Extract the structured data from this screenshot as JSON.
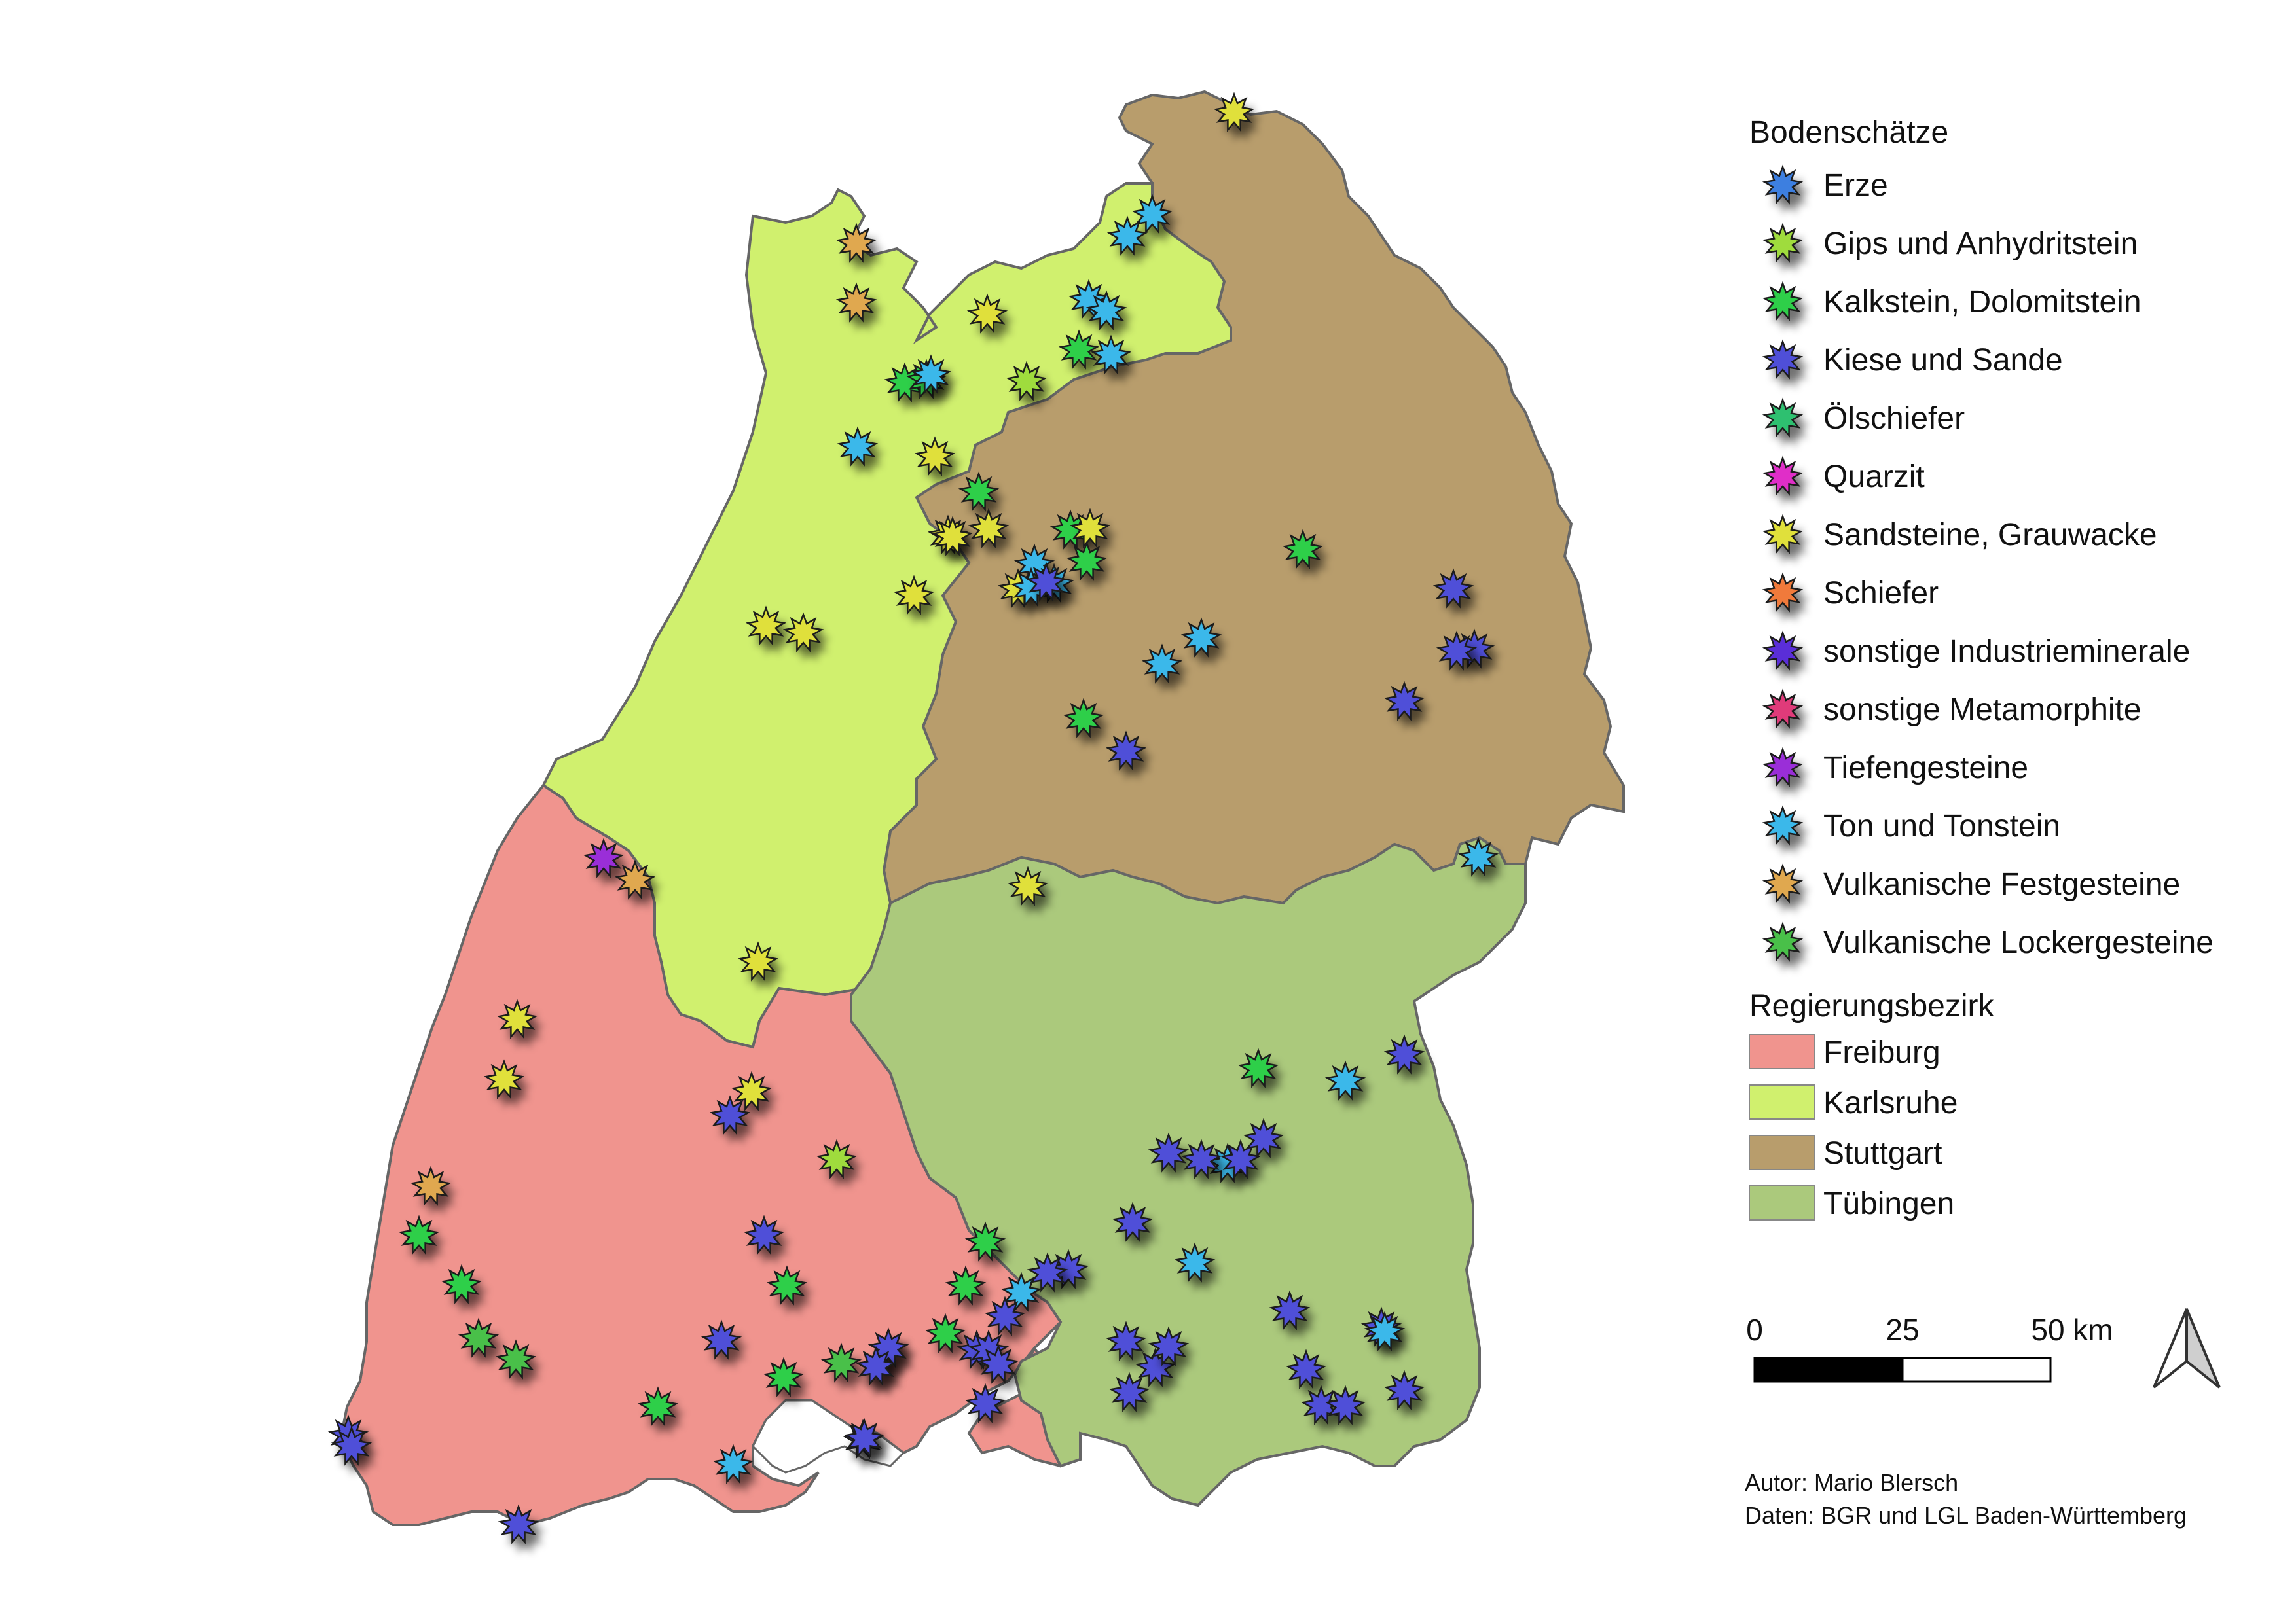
{
  "legend": {
    "minerals_title": "Bodenschätze",
    "minerals": [
      {
        "label": "Erze",
        "color": "#3d7fe0"
      },
      {
        "label": "Gips und Anhydritstein",
        "color": "#9fdc3c"
      },
      {
        "label": "Kalkstein, Dolomitstein",
        "color": "#2fcf4a"
      },
      {
        "label": "Kiese und Sande",
        "color": "#4f4fd8"
      },
      {
        "label": "Ölschiefer",
        "color": "#2fc070"
      },
      {
        "label": "Quarzit",
        "color": "#e02fc8"
      },
      {
        "label": "Sandsteine, Grauwacke",
        "color": "#e0e03a"
      },
      {
        "label": "Schiefer",
        "color": "#f07a3a"
      },
      {
        "label": "sonstige Industrieminerale",
        "color": "#5a2fd8"
      },
      {
        "label": "sonstige Metamorphite",
        "color": "#e03a7a"
      },
      {
        "label": "Tiefengesteine",
        "color": "#9a2fd8"
      },
      {
        "label": "Ton und Tonstein",
        "color": "#3ab8ea"
      },
      {
        "label": "Vulkanische Festgesteine",
        "color": "#e0a850"
      },
      {
        "label": "Vulkanische Lockergesteine",
        "color": "#4ac04a"
      }
    ],
    "regions_title": "Regierungsbezirk",
    "regions": [
      {
        "label": "Freiburg",
        "color": "#f0948e"
      },
      {
        "label": "Karlsruhe",
        "color": "#d0f06e"
      },
      {
        "label": "Stuttgart",
        "color": "#b89d6c"
      },
      {
        "label": "Tübingen",
        "color": "#abc97c"
      }
    ]
  },
  "scalebar": {
    "ticks": [
      "0",
      "25",
      "50 km"
    ]
  },
  "north_arrow": {
    "icon": "north-arrow-icon"
  },
  "credits": {
    "author": "Autor: Mario Blersch",
    "data": "Daten: BGR und LGL Baden-Württemberg"
  },
  "deposits": [
    {
      "t": "Vulkanische Festgesteine"
    },
    {
      "t": "Vulkanische Festgesteine"
    },
    {
      "t": "Sandsteine, Grauwacke"
    },
    {
      "t": "Ton und Tonstein"
    },
    {
      "t": "Ton und Tonstein"
    },
    {
      "t": "Ton und Tonstein"
    },
    {
      "t": "Ton und Tonstein"
    },
    {
      "t": "Sandsteine, Grauwacke"
    },
    {
      "t": "Kalkstein, Dolomitstein"
    },
    {
      "t": "Ton und Tonstein"
    },
    {
      "t": "Kalkstein, Dolomitstein"
    },
    {
      "t": "Kalkstein, Dolomitstein"
    },
    {
      "t": "Ton und Tonstein"
    },
    {
      "t": "Gips und Anhydritstein"
    },
    {
      "t": "Ton und Tonstein"
    },
    {
      "t": "Sandsteine, Grauwacke"
    },
    {
      "t": "Sandsteine, Grauwacke"
    },
    {
      "t": "Kalkstein, Dolomitstein"
    },
    {
      "t": "Sandsteine, Grauwacke"
    },
    {
      "t": "Sandsteine, Grauwacke"
    },
    {
      "t": "Kalkstein, Dolomitstein"
    },
    {
      "t": "Sandsteine, Grauwacke"
    },
    {
      "t": "Ton und Tonstein"
    },
    {
      "t": "Ton und Tonstein"
    },
    {
      "t": "Kalkstein, Dolomitstein"
    },
    {
      "t": "Sandsteine, Grauwacke"
    },
    {
      "t": "Sandsteine, Grauwacke"
    },
    {
      "t": "Ton und Tonstein"
    },
    {
      "t": "Sandsteine, Grauwacke"
    },
    {
      "t": "Sandsteine, Grauwacke"
    },
    {
      "t": "Kalkstein, Dolomitstein"
    },
    {
      "t": "Kiese und Sande"
    },
    {
      "t": "Kiese und Sande"
    },
    {
      "t": "Kiese und Sande"
    },
    {
      "t": "Kiese und Sande"
    },
    {
      "t": "Kiese und Sande"
    },
    {
      "t": "Ton und Tonstein"
    },
    {
      "t": "Ton und Tonstein"
    },
    {
      "t": "Kalkstein, Dolomitstein"
    },
    {
      "t": "Kiese und Sande"
    },
    {
      "t": "Ton und Tonstein"
    },
    {
      "t": "Sandsteine, Grauwacke"
    },
    {
      "t": "Tiefengesteine"
    },
    {
      "t": "Vulkanische Festgesteine"
    },
    {
      "t": "Sandsteine, Grauwacke"
    },
    {
      "t": "Sandsteine, Grauwacke"
    },
    {
      "t": "Sandsteine, Grauwacke"
    },
    {
      "t": "Sandsteine, Grauwacke"
    },
    {
      "t": "Kiese und Sande"
    },
    {
      "t": "Gips und Anhydritstein"
    },
    {
      "t": "Vulkanische Festgesteine"
    },
    {
      "t": "Kalkstein, Dolomitstein"
    },
    {
      "t": "Kalkstein, Dolomitstein"
    },
    {
      "t": "Kiese und Sande"
    },
    {
      "t": "Kalkstein, Dolomitstein"
    },
    {
      "t": "Vulkanische Lockergesteine"
    },
    {
      "t": "Vulkanische Lockergesteine"
    },
    {
      "t": "Kiese und Sande"
    },
    {
      "t": "Kalkstein, Dolomitstein"
    },
    {
      "t": "Kalkstein, Dolomitstein"
    },
    {
      "t": "Kiese und Sande"
    },
    {
      "t": "Kiese und Sande"
    },
    {
      "t": "Vulkanische Lockergesteine"
    },
    {
      "t": "Kiese und Sande"
    },
    {
      "t": "Ton und Tonstein"
    },
    {
      "t": "Kiese und Sande"
    },
    {
      "t": "Kalkstein, Dolomitstein"
    },
    {
      "t": "Kalkstein, Dolomitstein"
    },
    {
      "t": "Kalkstein, Dolomitstein"
    },
    {
      "t": "Kiese und Sande"
    },
    {
      "t": "Ton und Tonstein"
    },
    {
      "t": "Kiese und Sande"
    },
    {
      "t": "Kiese und Sande"
    },
    {
      "t": "Kiese und Sande"
    },
    {
      "t": "Kiese und Sande"
    },
    {
      "t": "Kiese und Sande"
    },
    {
      "t": "Kalkstein, Dolomitstein"
    },
    {
      "t": "Ton und Tonstein"
    },
    {
      "t": "Kiese und Sande"
    },
    {
      "t": "Kiese und Sande"
    },
    {
      "t": "Ton und Tonstein"
    },
    {
      "t": "Kiese und Sande"
    },
    {
      "t": "Kiese und Sande"
    },
    {
      "t": "Kiese und Sande"
    },
    {
      "t": "Ton und Tonstein"
    },
    {
      "t": "Kiese und Sande"
    },
    {
      "t": "Kiese und Sande"
    },
    {
      "t": "Kiese und Sande"
    },
    {
      "t": "Kiese und Sande"
    },
    {
      "t": "Kiese und Sande"
    },
    {
      "t": "Kiese und Sande"
    },
    {
      "t": "Kiese und Sande"
    },
    {
      "t": "Kiese und Sande"
    },
    {
      "t": "Kiese und Sande"
    },
    {
      "t": "Ton und Tonstein"
    },
    {
      "t": "Kiese und Sande"
    },
    {
      "t": "Kiese und Sande"
    },
    {
      "t": "Kiese und Sande"
    },
    {
      "t": "Kiese und Sande"
    },
    {
      "t": "Kiese und Sande"
    },
    {
      "t": "Kiese und Sande"
    },
    {
      "t": "Kiese und Sande"
    },
    {
      "t": "Kiese und Sande"
    }
  ]
}
